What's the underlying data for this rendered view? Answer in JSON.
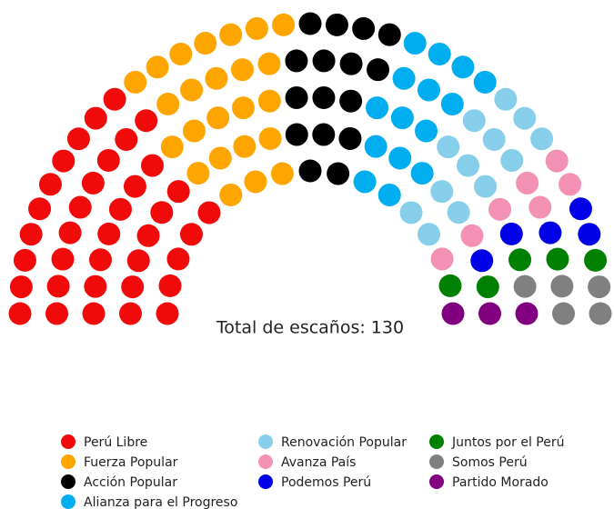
{
  "chart_data": {
    "type": "parliament",
    "total_label": "Total de escaños: 130",
    "series": [
      {
        "name": "Perú Libre",
        "color": "#f00a0a",
        "values": [
          37
        ]
      },
      {
        "name": "Fuerza Popular",
        "color": "#ffa500",
        "values": [
          24
        ]
      },
      {
        "name": "Acción Popular",
        "color": "#000000",
        "values": [
          16
        ]
      },
      {
        "name": "Alianza para el Progreso",
        "color": "#00aeef",
        "values": [
          15
        ]
      },
      {
        "name": "Renovación Popular",
        "color": "#87ceeb",
        "values": [
          13
        ]
      },
      {
        "name": "Avanza País",
        "color": "#f291b4",
        "values": [
          7
        ]
      },
      {
        "name": "Podemos Perú",
        "color": "#0000e6",
        "values": [
          5
        ]
      },
      {
        "name": "Juntos por el Perú",
        "color": "#008000",
        "values": [
          5
        ]
      },
      {
        "name": "Somos Perú",
        "color": "#808080",
        "values": [
          5
        ]
      },
      {
        "name": "Partido Morado",
        "color": "#800080",
        "values": [
          3
        ]
      }
    ]
  }
}
